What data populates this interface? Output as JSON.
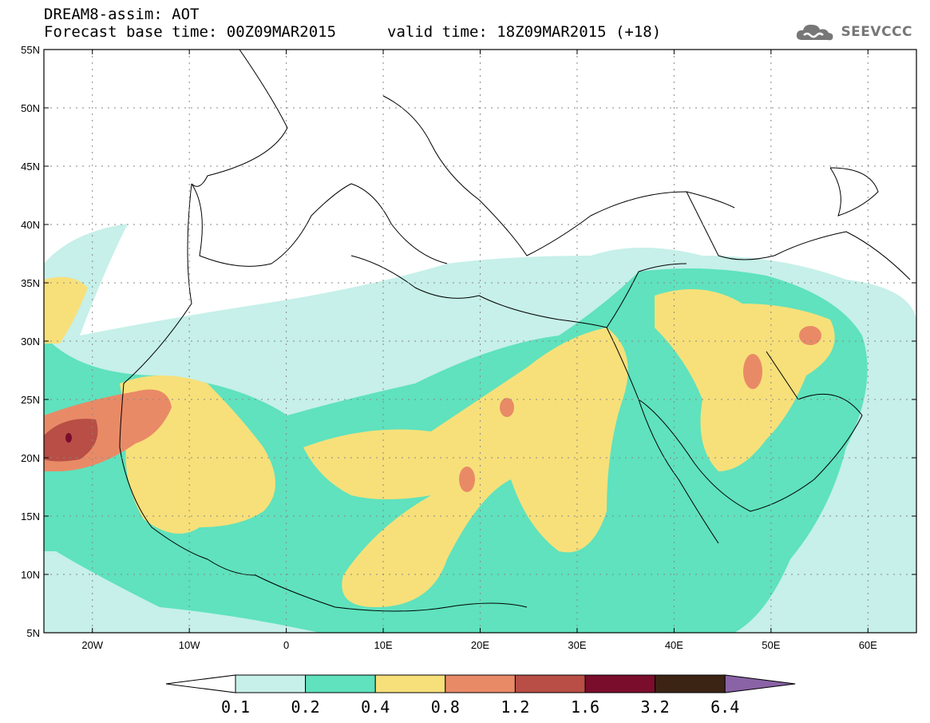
{
  "header": {
    "line1": "DREAM8-assim: AOT",
    "line2_base": "Forecast base time: 00Z09MAR2015",
    "line2_valid": "valid time: 18Z09MAR2015 (+18)"
  },
  "logo": {
    "text": "SEEVCCC",
    "icon": "cloud-icon"
  },
  "map": {
    "lat_labels": [
      "55N",
      "50N",
      "45N",
      "40N",
      "35N",
      "30N",
      "25N",
      "20N",
      "15N",
      "10N",
      "5N"
    ],
    "lon_labels": [
      "20W",
      "10W",
      "0",
      "10E",
      "20E",
      "30E",
      "40E",
      "50E",
      "60E"
    ],
    "lat_range": [
      5,
      55
    ],
    "lon_range": [
      -25,
      65
    ],
    "grid": "dotted"
  },
  "colorbar": {
    "labels": [
      "0.1",
      "0.2",
      "0.4",
      "0.8",
      "1.2",
      "1.6",
      "3.2",
      "6.4"
    ],
    "colors": [
      "#ffffff",
      "#c6f0e9",
      "#5fe2bd",
      "#f7e07a",
      "#e98a67",
      "#b84e45",
      "#7a0d2c",
      "#3b2414",
      "#8a63a6"
    ]
  }
}
